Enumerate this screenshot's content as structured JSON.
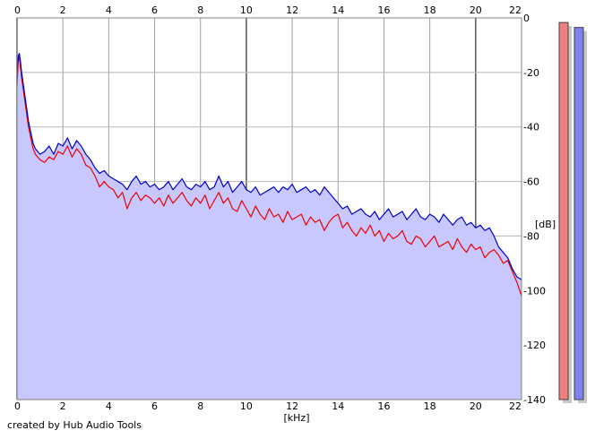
{
  "chart_data": {
    "type": "area",
    "xlabel": "[kHz]",
    "ylabel": "[dB]",
    "xlim": [
      0,
      22
    ],
    "ylim": [
      -140,
      0
    ],
    "x_ticks": [
      0,
      2,
      4,
      6,
      8,
      10,
      12,
      14,
      16,
      18,
      20,
      22
    ],
    "y_ticks": [
      0,
      -20,
      -40,
      -60,
      -80,
      -100,
      -120,
      -140
    ],
    "grid": true,
    "series": [
      {
        "color": "#ee0000",
        "x": [
          0,
          0.05,
          0.1,
          0.15,
          0.2,
          0.3,
          0.4,
          0.5,
          0.6,
          0.7,
          0.8,
          1,
          1.2,
          1.4,
          1.6,
          1.8,
          2,
          2.2,
          2.4,
          2.6,
          2.8,
          3,
          3.2,
          3.4,
          3.6,
          3.8,
          4,
          4.2,
          4.4,
          4.6,
          4.8,
          5,
          5.2,
          5.4,
          5.6,
          5.8,
          6,
          6.2,
          6.4,
          6.6,
          6.8,
          7,
          7.2,
          7.4,
          7.6,
          7.8,
          8,
          8.2,
          8.4,
          8.6,
          8.8,
          9,
          9.2,
          9.4,
          9.6,
          9.8,
          10,
          10.2,
          10.4,
          10.6,
          10.8,
          11,
          11.2,
          11.4,
          11.6,
          11.8,
          12,
          12.2,
          12.4,
          12.6,
          12.8,
          13,
          13.2,
          13.4,
          13.6,
          13.8,
          14,
          14.2,
          14.4,
          14.6,
          14.8,
          15,
          15.2,
          15.4,
          15.6,
          15.8,
          16,
          16.2,
          16.4,
          16.6,
          16.8,
          17,
          17.2,
          17.4,
          17.6,
          17.8,
          18,
          18.2,
          18.4,
          18.6,
          18.8,
          19,
          19.2,
          19.4,
          19.6,
          19.8,
          20,
          20.2,
          20.4,
          20.6,
          20.8,
          21,
          21.2,
          21.4,
          21.6,
          21.8,
          22
        ],
        "values": [
          -25,
          -16,
          -14,
          -18,
          -22,
          -28,
          -34,
          -40,
          -44,
          -48,
          -50,
          -52,
          -53,
          -51,
          -52,
          -49,
          -50,
          -47,
          -51,
          -48,
          -50,
          -54,
          -55,
          -58,
          -62,
          -60,
          -62,
          -63,
          -66,
          -64,
          -70,
          -66,
          -64,
          -67,
          -65,
          -66,
          -68,
          -66,
          -69,
          -65,
          -68,
          -66,
          -64,
          -67,
          -69,
          -66,
          -68,
          -65,
          -70,
          -67,
          -64,
          -68,
          -66,
          -70,
          -71,
          -67,
          -70,
          -73,
          -69,
          -72,
          -74,
          -70,
          -73,
          -72,
          -75,
          -71,
          -74,
          -73,
          -72,
          -76,
          -73,
          -75,
          -74,
          -78,
          -75,
          -73,
          -72,
          -77,
          -75,
          -78,
          -80,
          -77,
          -79,
          -76,
          -80,
          -78,
          -82,
          -79,
          -81,
          -80,
          -78,
          -82,
          -83,
          -80,
          -81,
          -84,
          -82,
          -80,
          -84,
          -83,
          -82,
          -85,
          -81,
          -84,
          -86,
          -83,
          -85,
          -84,
          -88,
          -86,
          -85,
          -87,
          -90,
          -89,
          -93,
          -97,
          -102
        ]
      },
      {
        "color": "#0000cc",
        "x": [
          0,
          0.05,
          0.1,
          0.15,
          0.2,
          0.3,
          0.4,
          0.5,
          0.6,
          0.7,
          0.8,
          1,
          1.2,
          1.4,
          1.6,
          1.8,
          2,
          2.2,
          2.4,
          2.6,
          2.8,
          3,
          3.2,
          3.4,
          3.6,
          3.8,
          4,
          4.2,
          4.4,
          4.6,
          4.8,
          5,
          5.2,
          5.4,
          5.6,
          5.8,
          6,
          6.2,
          6.4,
          6.6,
          6.8,
          7,
          7.2,
          7.4,
          7.6,
          7.8,
          8,
          8.2,
          8.4,
          8.6,
          8.8,
          9,
          9.2,
          9.4,
          9.6,
          9.8,
          10,
          10.2,
          10.4,
          10.6,
          10.8,
          11,
          11.2,
          11.4,
          11.6,
          11.8,
          12,
          12.2,
          12.4,
          12.6,
          12.8,
          13,
          13.2,
          13.4,
          13.6,
          13.8,
          14,
          14.2,
          14.4,
          14.6,
          14.8,
          15,
          15.2,
          15.4,
          15.6,
          15.8,
          16,
          16.2,
          16.4,
          16.6,
          16.8,
          17,
          17.2,
          17.4,
          17.6,
          17.8,
          18,
          18.2,
          18.4,
          18.6,
          18.8,
          19,
          19.2,
          19.4,
          19.6,
          19.8,
          20,
          20.2,
          20.4,
          20.6,
          20.8,
          21,
          21.2,
          21.4,
          21.6,
          21.8,
          22
        ],
        "values": [
          -22,
          -14,
          -13,
          -16,
          -20,
          -26,
          -32,
          -38,
          -42,
          -46,
          -48,
          -50,
          -49,
          -47,
          -50,
          -46,
          -47,
          -44,
          -48,
          -45,
          -47,
          -50,
          -52,
          -55,
          -57,
          -56,
          -58,
          -59,
          -60,
          -61,
          -63,
          -60,
          -58,
          -61,
          -60,
          -62,
          -61,
          -63,
          -62,
          -60,
          -63,
          -61,
          -59,
          -62,
          -63,
          -61,
          -62,
          -60,
          -63,
          -62,
          -58,
          -62,
          -60,
          -64,
          -62,
          -60,
          -63,
          -64,
          -62,
          -65,
          -64,
          -63,
          -62,
          -64,
          -62,
          -63,
          -61,
          -64,
          -63,
          -62,
          -64,
          -63,
          -65,
          -62,
          -64,
          -66,
          -68,
          -70,
          -69,
          -72,
          -71,
          -70,
          -72,
          -73,
          -71,
          -74,
          -72,
          -70,
          -73,
          -72,
          -71,
          -74,
          -72,
          -70,
          -73,
          -74,
          -72,
          -73,
          -75,
          -72,
          -74,
          -76,
          -74,
          -73,
          -76,
          -75,
          -77,
          -76,
          -78,
          -77,
          -80,
          -84,
          -86,
          -88,
          -92,
          -95,
          -96
        ]
      }
    ]
  },
  "meter": {
    "left_color": "#ee8080",
    "right_color": "#8080ee",
    "left_level": 0.988,
    "right_level": 0.975
  },
  "footer": {
    "credit": "created by Hub Audio Tools"
  }
}
